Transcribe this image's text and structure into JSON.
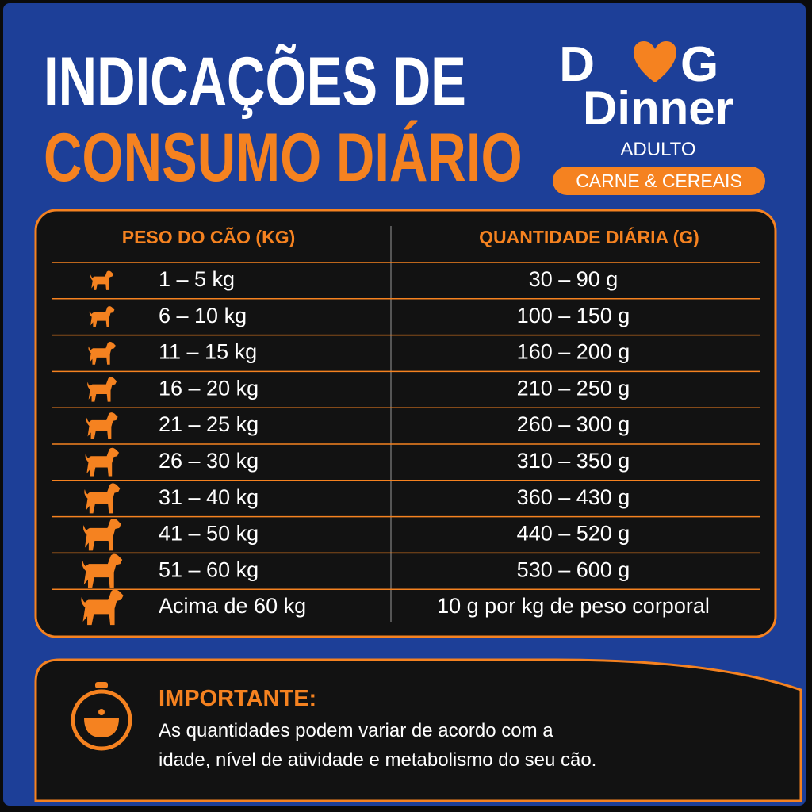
{
  "header": {
    "title_line1": "INDICAÇÕES DE",
    "title_line2": "CONSUMO DIÁRIO"
  },
  "brand": {
    "logo_start": "D",
    "logo_end": "G",
    "logo_line2": "Dinner",
    "variant": "ADULTO",
    "flavor": "CARNE & CEREAIS"
  },
  "table": {
    "columns": [
      "PESO DO CÃO (KG)",
      "QUANTIDADE DIÁRIA (G)"
    ],
    "rows": [
      [
        "1 – 5 kg",
        "30 – 90 g"
      ],
      [
        "6 – 10 kg",
        "100 – 150 g"
      ],
      [
        "11 – 15 kg",
        "160 – 200 g"
      ],
      [
        "16 – 20 kg",
        "210 – 250 g"
      ],
      [
        "21 – 25 kg",
        "260 – 300 g"
      ],
      [
        "26 – 30 kg",
        "310 – 350 g"
      ],
      [
        "31 – 40 kg",
        "360 – 430 g"
      ],
      [
        "41 – 50 kg",
        "440 – 520 g"
      ],
      [
        "51 – 60 kg",
        "530 – 600 g"
      ],
      [
        "Acima de 60 kg",
        "10 g por kg de peso corporal"
      ]
    ]
  },
  "note": {
    "title": "IMPORTANTE:",
    "text_line1": "As quantidades podem variar de acordo com a",
    "text_line2": "idade, nível de atividade e metabolismo do seu cão."
  }
}
